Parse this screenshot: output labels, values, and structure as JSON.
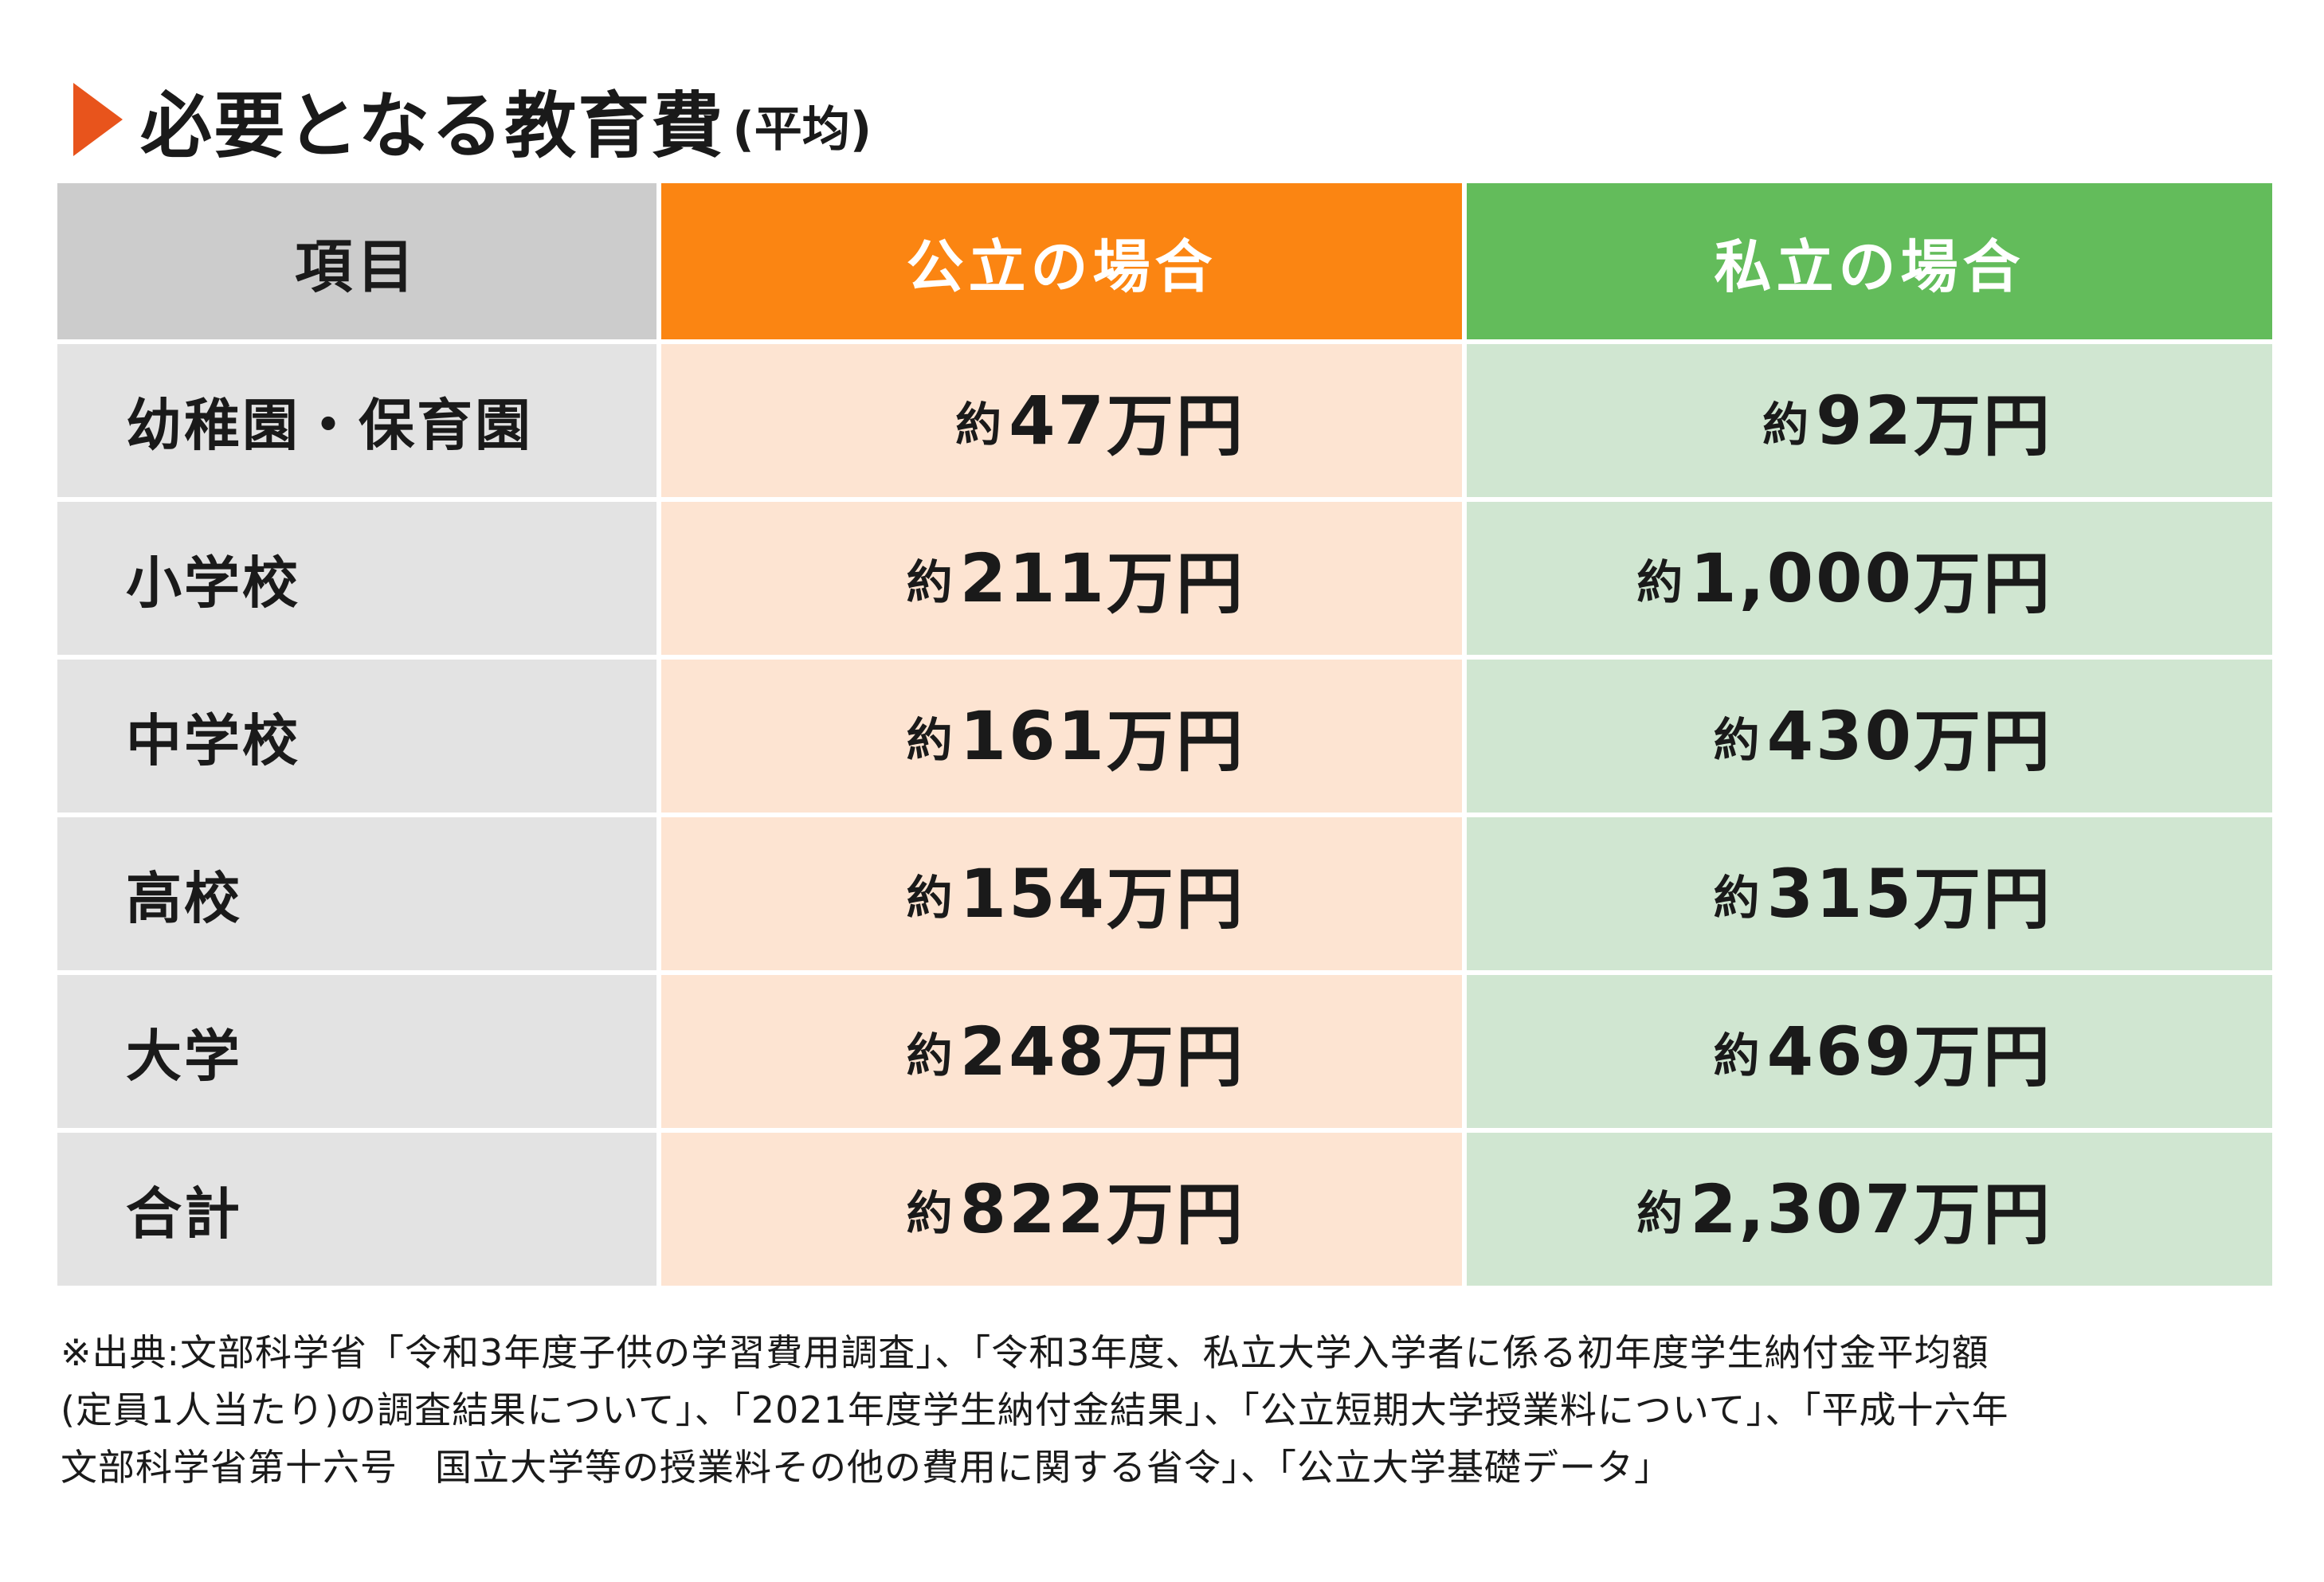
{
  "title": {
    "main": "必要となる教育費",
    "sub": "(平均)",
    "marker_color": "#e8541c"
  },
  "chart_data": {
    "type": "table",
    "title": "必要となる教育費(平均)",
    "columns": [
      "項目",
      "公立の場合",
      "私立の場合"
    ],
    "rows": [
      {
        "item": "幼稚園・保育園",
        "public": "47",
        "private": "92"
      },
      {
        "item": "小学校",
        "public": "211",
        "private": "1,000"
      },
      {
        "item": "中学校",
        "public": "161",
        "private": "430"
      },
      {
        "item": "高校",
        "public": "154",
        "private": "315"
      },
      {
        "item": "大学",
        "public": "248",
        "private": "469"
      },
      {
        "item": "合計",
        "public": "822",
        "private": "2,307"
      }
    ],
    "value_prefix": "約",
    "value_suffix": "万円",
    "colors": {
      "header_item": "#cccccc",
      "header_public": "#fb8512",
      "header_private": "#63bc5b",
      "cell_item": "#e3e3e3",
      "cell_public": "#fde4d2",
      "cell_private": "#d0e6d1"
    }
  },
  "source": {
    "lines": [
      "※出典:文部科学省「令和3年度子供の学習費用調査」、「令和3年度、私立大学入学者に係る初年度学生納付金平均額",
      "(定員1人当たり)の調査結果について」、「2021年度学生納付金結果」、「公立短期大学授業料について」、「平成十六年",
      "文部科学省第十六号　国立大学等の授業料その他の費用に関する省令」、「公立大学基礎データ」"
    ]
  }
}
